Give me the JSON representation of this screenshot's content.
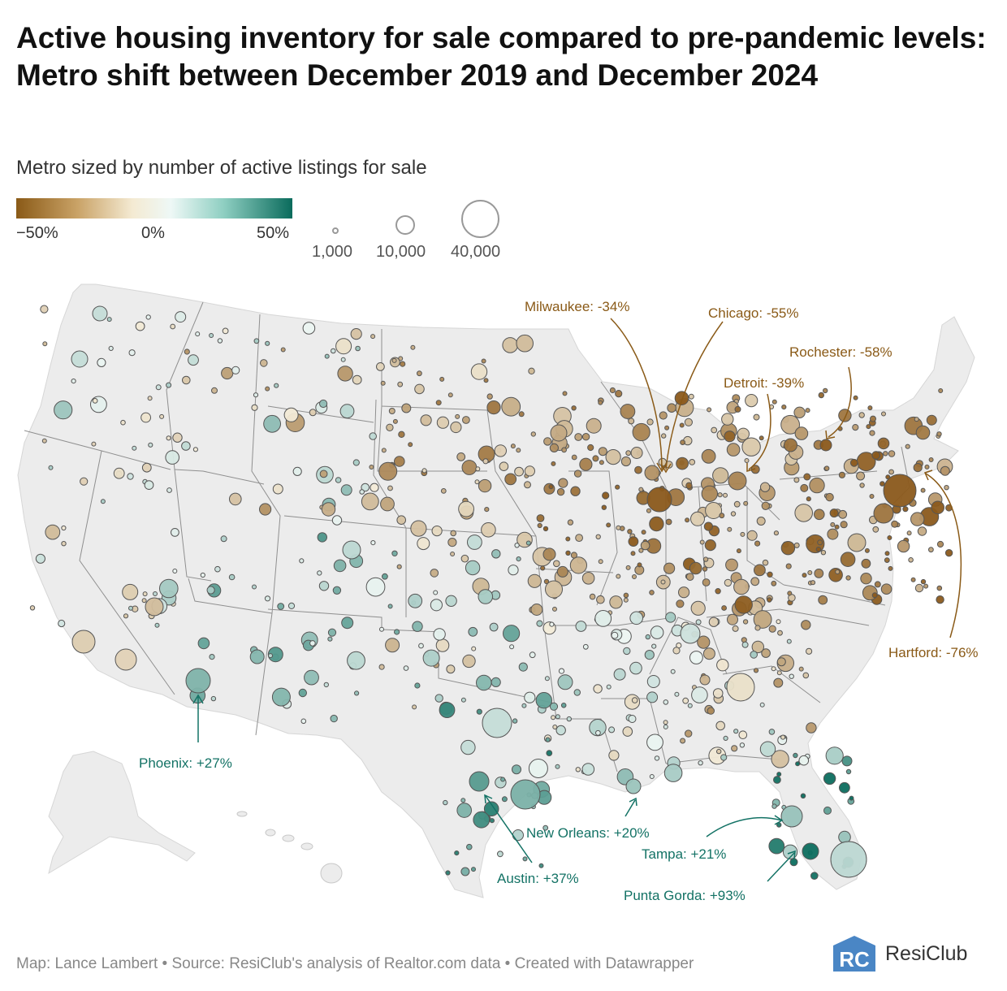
{
  "title": "Active housing inventory for sale compared to pre-pandemic levels: Metro shift between December 2019 and December 2024",
  "subtitle": "Metro sized by number of active listings for sale",
  "color_legend": {
    "ticks": [
      "−50%",
      "0%",
      "50%"
    ],
    "low_color": "#8a5a17",
    "mid_color": "#f4f1e4",
    "high_color": "#0a6b5c"
  },
  "size_legend": {
    "labels": [
      "1,000",
      "10,000",
      "40,000"
    ]
  },
  "annotations": {
    "milwaukee": "Milwaukee: -34%",
    "chicago": "Chicago: -55%",
    "rochester": "Rochester: -58%",
    "detroit": "Detroit: -39%",
    "hartford": "Hartford: -76%",
    "phoenix": "Phoenix: +27%",
    "new_orleans": "New Orleans: +20%",
    "tampa": "Tampa: +21%",
    "austin": "Austin: +37%",
    "punta_gorda": "Punta Gorda: +93%"
  },
  "highlighted_metros": [
    {
      "name": "Milwaukee",
      "change_pct": -34
    },
    {
      "name": "Chicago",
      "change_pct": -55
    },
    {
      "name": "Rochester",
      "change_pct": -58
    },
    {
      "name": "Detroit",
      "change_pct": -39
    },
    {
      "name": "Hartford",
      "change_pct": -76
    },
    {
      "name": "Phoenix",
      "change_pct": 27
    },
    {
      "name": "New Orleans",
      "change_pct": 20
    },
    {
      "name": "Tampa",
      "change_pct": 21
    },
    {
      "name": "Austin",
      "change_pct": 37
    },
    {
      "name": "Punta Gorda",
      "change_pct": 93
    }
  ],
  "footer": {
    "source": "Map: Lance Lambert • Source: ResiClub's analysis of Realtor.com data • Created with Datawrapper",
    "brand": "ResiClub",
    "logo_letters": "RC"
  },
  "colors": {
    "land": "#ececec",
    "border": "#8f8f8f",
    "brown_annotation": "#8a5a17",
    "teal_annotation": "#137265"
  }
}
